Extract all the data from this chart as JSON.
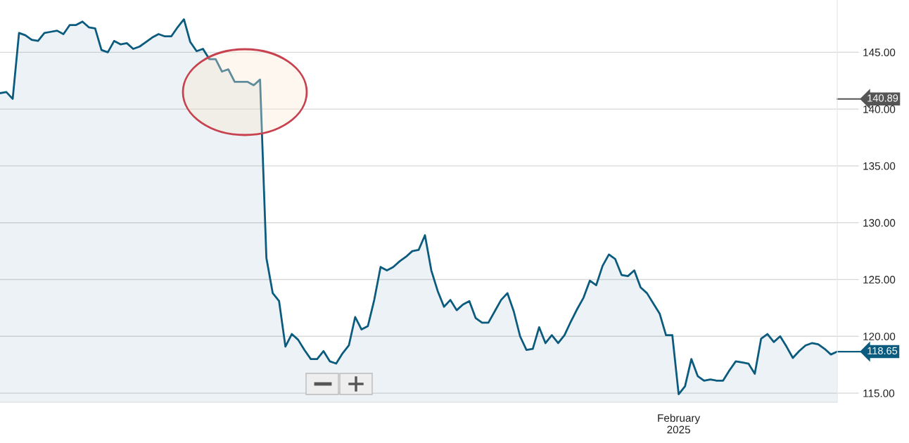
{
  "chart_data": {
    "type": "area",
    "categories": [
      null,
      null,
      null,
      null,
      null,
      null,
      null,
      null,
      null,
      null,
      null,
      null,
      null,
      null,
      null,
      null,
      null,
      null,
      null,
      null,
      null,
      null,
      null,
      null,
      null,
      null,
      null,
      null,
      null,
      null,
      null,
      null,
      null,
      null,
      null,
      null,
      null,
      null,
      null,
      null,
      null,
      null,
      null,
      null,
      null,
      null,
      null,
      null,
      null,
      null,
      null,
      null,
      null,
      null,
      null,
      null,
      null,
      null,
      null,
      null,
      null,
      null,
      null,
      null,
      null,
      null,
      null,
      null,
      null,
      null,
      null,
      null,
      null,
      null,
      null,
      null,
      null,
      null,
      null,
      null,
      null,
      null,
      null,
      null,
      null,
      null,
      null,
      null,
      null,
      null,
      null,
      null,
      null,
      null,
      null,
      null,
      null,
      null,
      null,
      null,
      null,
      null,
      null,
      null,
      null,
      null,
      null,
      "February\n2025",
      null,
      null,
      null,
      null,
      null,
      null,
      null,
      null,
      null,
      null,
      null,
      null,
      null,
      null,
      null,
      null,
      null,
      null,
      null,
      null,
      null,
      null,
      null,
      null,
      null
    ],
    "series": [
      {
        "color": "#0b5b7e",
        "values": [
          141.4,
          141.5,
          140.9,
          146.7,
          146.5,
          146.1,
          146.0,
          146.7,
          146.8,
          146.9,
          146.6,
          147.4,
          147.4,
          147.7,
          147.2,
          147.1,
          145.2,
          145.0,
          146.0,
          145.7,
          145.8,
          145.3,
          145.5,
          145.9,
          146.3,
          146.6,
          146.4,
          146.4,
          147.2,
          147.9,
          145.9,
          145.1,
          145.3,
          144.4,
          144.4,
          143.3,
          143.5,
          142.4,
          142.4,
          142.4,
          142.1,
          142.6,
          126.9,
          123.8,
          123.1,
          119.1,
          120.2,
          119.7,
          118.8,
          118.0,
          118.0,
          118.7,
          117.8,
          117.6,
          118.5,
          119.2,
          121.7,
          120.6,
          120.9,
          123.2,
          126.1,
          125.8,
          126.1,
          126.6,
          127.0,
          127.5,
          127.6,
          128.9,
          125.8,
          124.0,
          122.6,
          123.2,
          122.3,
          122.8,
          123.1,
          121.6,
          121.2,
          121.2,
          122.2,
          123.2,
          123.8,
          122.2,
          120.0,
          118.8,
          118.9,
          120.8,
          119.4,
          120.1,
          119.4,
          120.1,
          121.3,
          122.4,
          123.4,
          124.9,
          124.5,
          126.2,
          127.2,
          126.8,
          125.4,
          125.3,
          125.8,
          124.3,
          123.8,
          122.9,
          122.0,
          120.1,
          120.1,
          114.9,
          115.6,
          118.0,
          116.5,
          116.1,
          116.2,
          116.1,
          116.1,
          117.0,
          117.8,
          117.7,
          117.6,
          116.7,
          119.8,
          120.2,
          119.5,
          120.0,
          119.1,
          118.1,
          118.7,
          119.2,
          119.4,
          119.3,
          118.9,
          118.4,
          118.65
        ]
      }
    ],
    "ylim": [
      114.2,
      149.6
    ],
    "yticks": [
      {
        "value": 115,
        "label": "115.00"
      },
      {
        "value": 120,
        "label": "120.00"
      },
      {
        "value": 125,
        "label": "125.00"
      },
      {
        "value": 130,
        "label": "130.00"
      },
      {
        "value": 135,
        "label": "135.00"
      },
      {
        "value": 140,
        "label": "140.00"
      },
      {
        "value": 145,
        "label": "145.00"
      }
    ],
    "grid": "y",
    "ref_lines": [
      {
        "axis": "y",
        "value": 140.89,
        "label": "140.89",
        "color": "#555555"
      },
      {
        "axis": "y",
        "value": 118.65,
        "label": "118.65",
        "color": "#0b5b7e"
      }
    ]
  }
}
